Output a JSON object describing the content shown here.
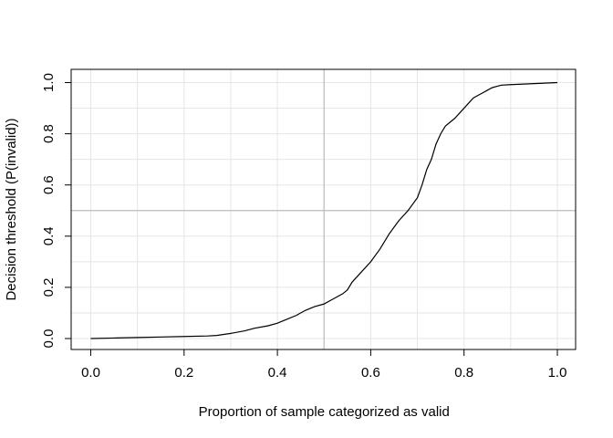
{
  "chart_data": {
    "type": "line",
    "title": "",
    "xlabel": "Proportion of sample categorized as valid",
    "ylabel": "Decision threshold (P(invalid))",
    "xlim": [
      0.0,
      1.0
    ],
    "ylim": [
      0.0,
      1.0
    ],
    "xticks": [
      "0.0",
      "0.2",
      "0.4",
      "0.6",
      "0.8",
      "1.0"
    ],
    "yticks": [
      "0.0",
      "0.2",
      "0.4",
      "0.6",
      "0.8",
      "1.0"
    ],
    "grid": true,
    "reference_lines": {
      "x": 0.5,
      "y": 0.5
    },
    "line_color": "#000000",
    "grid_color": "#e5e5e5",
    "reference_color": "#bebebe",
    "series": [
      {
        "x": [
          0.0,
          0.05,
          0.1,
          0.15,
          0.2,
          0.25,
          0.27,
          0.3,
          0.33,
          0.35,
          0.38,
          0.4,
          0.42,
          0.44,
          0.46,
          0.48,
          0.5,
          0.52,
          0.54,
          0.55,
          0.56,
          0.58,
          0.6,
          0.62,
          0.64,
          0.66,
          0.68,
          0.7,
          0.71,
          0.72,
          0.73,
          0.74,
          0.75,
          0.76,
          0.78,
          0.79,
          0.8,
          0.81,
          0.82,
          0.83,
          0.84,
          0.85,
          0.86,
          0.87,
          0.88,
          0.9,
          0.95,
          1.0
        ],
        "y": [
          0.0,
          0.002,
          0.004,
          0.006,
          0.008,
          0.01,
          0.012,
          0.02,
          0.03,
          0.04,
          0.05,
          0.06,
          0.075,
          0.09,
          0.11,
          0.125,
          0.135,
          0.155,
          0.175,
          0.19,
          0.22,
          0.26,
          0.3,
          0.35,
          0.41,
          0.46,
          0.5,
          0.55,
          0.6,
          0.66,
          0.7,
          0.76,
          0.8,
          0.83,
          0.86,
          0.88,
          0.9,
          0.92,
          0.94,
          0.95,
          0.96,
          0.97,
          0.98,
          0.985,
          0.99,
          0.992,
          0.996,
          1.0
        ]
      }
    ]
  }
}
